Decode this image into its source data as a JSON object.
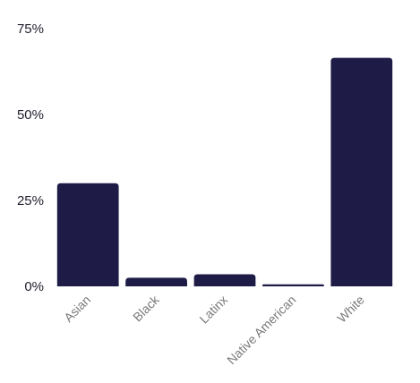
{
  "chart_data": {
    "type": "bar",
    "title": "",
    "xlabel": "",
    "ylabel": "",
    "categories": [
      "Asian",
      "Black",
      "Latinx",
      "Native American",
      "White"
    ],
    "values": [
      30,
      2.5,
      3.5,
      0.6,
      66.5
    ],
    "ylim": [
      0,
      75
    ],
    "yticks": [
      0,
      25,
      50,
      75
    ],
    "ytick_labels": [
      "0%",
      "25%",
      "50%",
      "75%"
    ],
    "bar_color": "#1e1c47",
    "grid": false,
    "legend": "none"
  }
}
